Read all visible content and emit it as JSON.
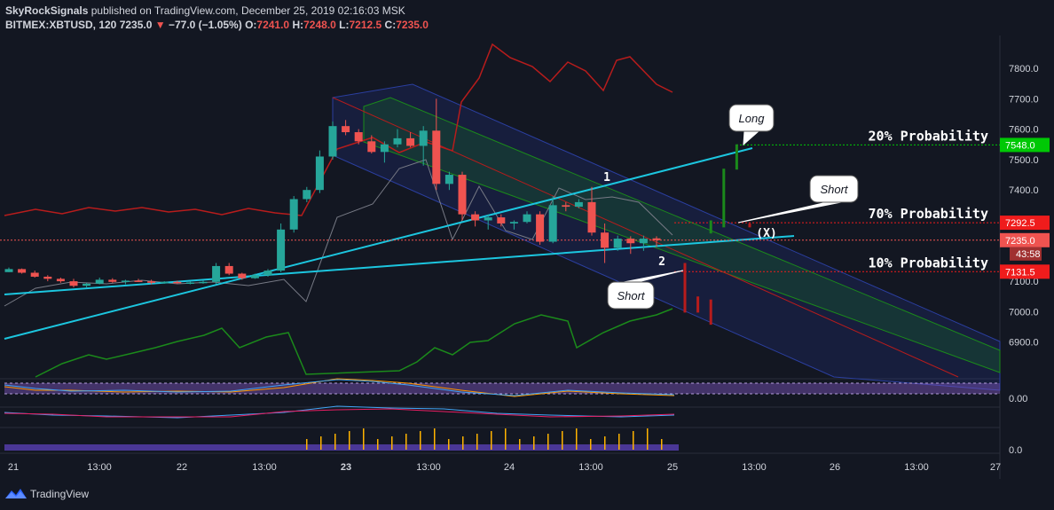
{
  "header": {
    "author": "SkyRockSignals",
    "published_text": "published on TradingView.com, December 25, 2019 02:16:03 MSK",
    "symbol": "BITMEX:XBTUSD, 120",
    "last_price": "7235.0",
    "change_arrow": "▼",
    "change": "−77.0 (−1.05%)",
    "o_label": "O:",
    "o_value": "7241.0",
    "h_label": "H:",
    "h_value": "7248.0",
    "l_label": "L:",
    "l_value": "7212.5",
    "c_label": "C:",
    "c_value": "7235.0"
  },
  "footer": {
    "brand": "TradingView"
  },
  "colors": {
    "background": "#131722",
    "up_candle": "#26a69a",
    "down_candle": "#ef5350",
    "trendline": "#1cc6df",
    "indicator_red": "#b71c1c",
    "indicator_green": "#1b8a1b"
  },
  "chart_data": {
    "type": "candlestick",
    "title": "",
    "x_tick_labels": [
      "21",
      "13:00",
      "22",
      "13:00",
      "23",
      "13:00",
      "24",
      "13:00",
      "25",
      "13:00",
      "26",
      "13:00",
      "27"
    ],
    "y_tick_labels": [
      "7800.0",
      "7700.0",
      "7600.0",
      "7500.0",
      "7400.0",
      "7100.0",
      "7000.0",
      "6900.0"
    ],
    "y_range": [
      6830,
      7890
    ],
    "price_badges": [
      {
        "label": "7548.0",
        "value": 7548,
        "color": "#00c805"
      },
      {
        "label": "7292.5",
        "value": 7292.5,
        "color": "#ef1c1c"
      },
      {
        "label": "7235.0",
        "sub": "43:58",
        "value": 7235,
        "color": "#ef5350"
      },
      {
        "label": "7131.5",
        "value": 7131.5,
        "color": "#ef1c1c"
      }
    ],
    "probability_labels": [
      {
        "text": "20% Probability",
        "value": 7548
      },
      {
        "text": "70% Probability",
        "value": 7292.5
      },
      {
        "text": "10% Probability",
        "value": 7131.5
      }
    ],
    "callouts": [
      "Long",
      "Short",
      "Short"
    ],
    "markers": [
      "1",
      "2",
      "(X)"
    ],
    "osc_tick_labels": [
      "0.00",
      "0.0"
    ],
    "candles": [
      [
        7130,
        7145,
        7130,
        7140
      ],
      [
        7140,
        7142,
        7125,
        7128
      ],
      [
        7128,
        7135,
        7112,
        7115
      ],
      [
        7115,
        7120,
        7100,
        7108
      ],
      [
        7108,
        7112,
        7095,
        7100
      ],
      [
        7100,
        7108,
        7080,
        7085
      ],
      [
        7085,
        7095,
        7080,
        7092
      ],
      [
        7092,
        7112,
        7090,
        7105
      ],
      [
        7105,
        7110,
        7095,
        7098
      ],
      [
        7098,
        7105,
        7090,
        7102
      ],
      [
        7102,
        7108,
        7098,
        7100
      ],
      [
        7100,
        7105,
        7090,
        7095
      ],
      [
        7095,
        7100,
        7092,
        7098
      ],
      [
        7098,
        7102,
        7092,
        7094
      ],
      [
        7094,
        7100,
        7090,
        7096
      ],
      [
        7096,
        7102,
        7092,
        7098
      ],
      [
        7098,
        7160,
        7090,
        7150
      ],
      [
        7150,
        7160,
        7120,
        7125
      ],
      [
        7125,
        7128,
        7105,
        7110
      ],
      [
        7110,
        7125,
        7108,
        7120
      ],
      [
        7120,
        7140,
        7115,
        7135
      ],
      [
        7135,
        7290,
        7130,
        7270
      ],
      [
        7270,
        7380,
        7260,
        7370
      ],
      [
        7370,
        7410,
        7360,
        7400
      ],
      [
        7400,
        7530,
        7390,
        7510
      ],
      [
        7510,
        7625,
        7500,
        7610
      ],
      [
        7610,
        7630,
        7580,
        7590
      ],
      [
        7590,
        7600,
        7550,
        7560
      ],
      [
        7560,
        7580,
        7520,
        7525
      ],
      [
        7525,
        7560,
        7490,
        7550
      ],
      [
        7550,
        7600,
        7540,
        7570
      ],
      [
        7570,
        7590,
        7540,
        7545
      ],
      [
        7545,
        7610,
        7480,
        7595
      ],
      [
        7595,
        7700,
        7400,
        7420
      ],
      [
        7420,
        7460,
        7400,
        7450
      ],
      [
        7450,
        7460,
        7300,
        7320
      ],
      [
        7320,
        7330,
        7280,
        7300
      ],
      [
        7300,
        7320,
        7270,
        7310
      ],
      [
        7310,
        7320,
        7280,
        7290
      ],
      [
        7290,
        7300,
        7270,
        7295
      ],
      [
        7295,
        7330,
        7290,
        7320
      ],
      [
        7320,
        7330,
        7220,
        7230
      ],
      [
        7230,
        7380,
        7225,
        7350
      ],
      [
        7350,
        7360,
        7330,
        7345
      ],
      [
        7345,
        7370,
        7340,
        7360
      ],
      [
        7360,
        7410,
        7250,
        7260
      ],
      [
        7260,
        7290,
        7160,
        7210
      ],
      [
        7210,
        7250,
        7200,
        7240
      ],
      [
        7240,
        7248,
        7190,
        7225
      ],
      [
        7225,
        7250,
        7200,
        7240
      ],
      [
        7241,
        7248,
        7212.5,
        7235
      ]
    ],
    "signal_bars": [
      {
        "i": 52,
        "from": 7260,
        "to": 7300,
        "color": "#1b8a1b"
      },
      {
        "i": 53,
        "from": 7280,
        "to": 7470,
        "color": "#1b8a1b"
      },
      {
        "i": 54,
        "from": 7470,
        "to": 7550,
        "color": "#1b8a1b"
      },
      {
        "i": 55,
        "from": 7280,
        "to": 7290,
        "color": "#b71c1c"
      },
      {
        "i": 50,
        "from": 7160,
        "to": 7000,
        "color": "#b71c1c"
      },
      {
        "i": 51,
        "from": 7050,
        "to": 7000,
        "color": "#b71c1c"
      },
      {
        "i": 52,
        "from": 7040,
        "to": 6960,
        "color": "#b71c1c"
      }
    ]
  }
}
